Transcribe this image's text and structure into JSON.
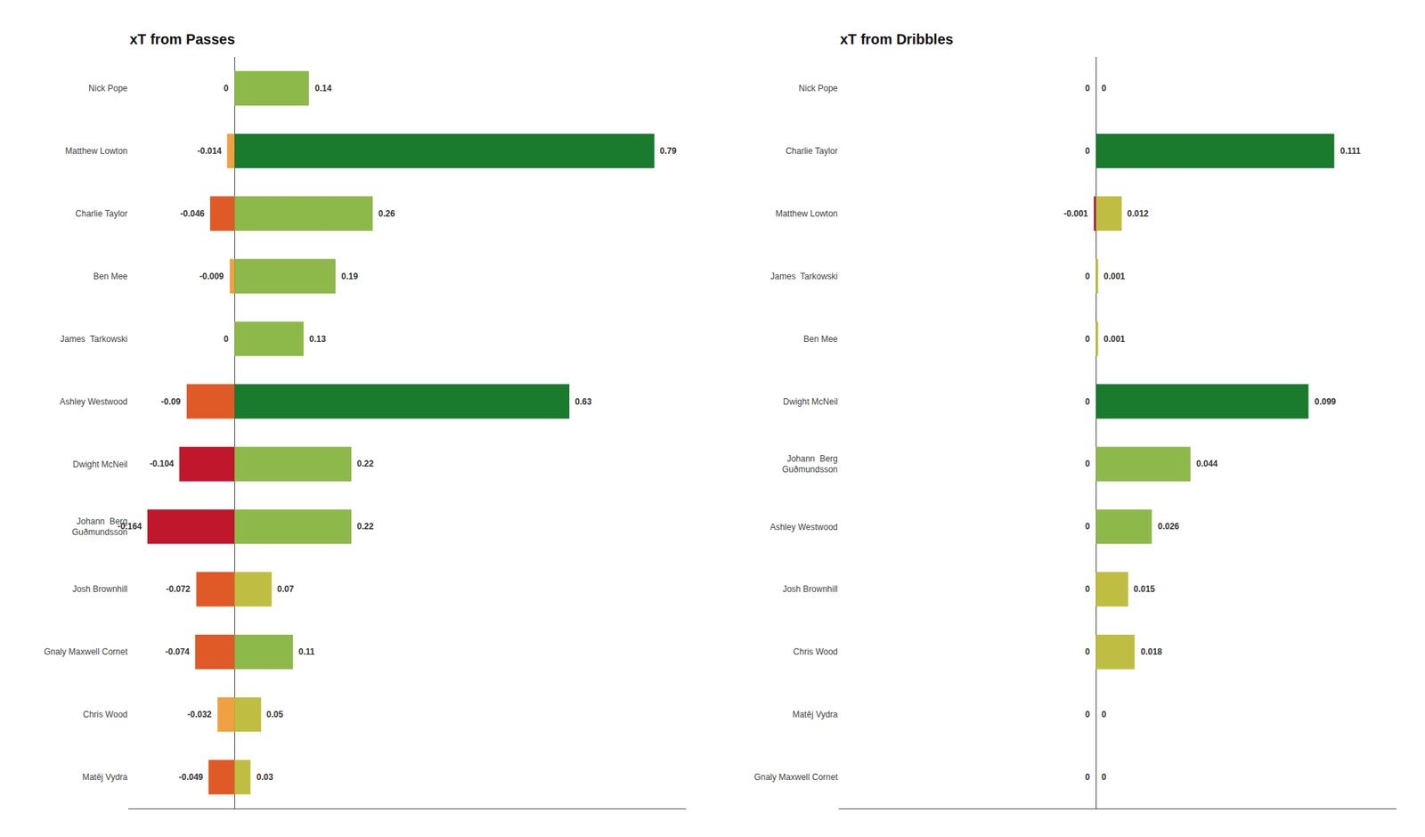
{
  "chart_data": [
    {
      "type": "bar",
      "orientation": "horizontal",
      "title": "xT from Passes",
      "categories": [
        "Nick Pope",
        "Matthew Lowton",
        "Charlie Taylor",
        "Ben Mee",
        "James  Tarkowski",
        "Ashley Westwood",
        "Dwight McNeil",
        "Johann  Berg\nGuðmundsson",
        "Josh Brownhill",
        "Gnaly Maxwell Cornet",
        "Chris Wood",
        "Matěj Vydra"
      ],
      "series": [
        {
          "values": [
            0,
            -0.014,
            -0.046,
            -0.009,
            0,
            -0.09,
            -0.104,
            -0.164,
            -0.072,
            -0.074,
            -0.032,
            -0.049
          ],
          "colors": [
            "#f0a040",
            "#f0a040",
            "#e05a28",
            "#f0a040",
            "#f0a040",
            "#e05a28",
            "#c0172d",
            "#c0172d",
            "#e05a28",
            "#e05a28",
            "#f0a040",
            "#e05a28"
          ]
        },
        {
          "values": [
            0.14,
            0.79,
            0.26,
            0.19,
            0.13,
            0.63,
            0.22,
            0.22,
            0.07,
            0.11,
            0.05,
            0.03
          ],
          "colors": [
            "#8db84a",
            "#1a7a2e",
            "#8db84a",
            "#8db84a",
            "#8db84a",
            "#1a7a2e",
            "#8db84a",
            "#8db84a",
            "#bfbe42",
            "#8db84a",
            "#bfbe42",
            "#bfbe42"
          ]
        }
      ],
      "xlim": [
        -0.2,
        0.85
      ],
      "data_labels": true,
      "tick_labels": "y",
      "grid": false
    },
    {
      "type": "bar",
      "orientation": "horizontal",
      "title": "xT from Dribbles",
      "categories": [
        "Nick Pope",
        "Charlie Taylor",
        "Matthew Lowton",
        "James  Tarkowski",
        "Ben Mee",
        "Dwight McNeil",
        "Johann  Berg\nGuðmundsson",
        "Ashley Westwood",
        "Josh Brownhill",
        "Chris Wood",
        "Matěj Vydra",
        "Gnaly Maxwell Cornet"
      ],
      "series": [
        {
          "values": [
            0,
            0,
            -0.001,
            0,
            0,
            0,
            0,
            0,
            0,
            0,
            0,
            0
          ],
          "colors": [
            "#f0a040",
            "#f0a040",
            "#b8123a",
            "#f0a040",
            "#f0a040",
            "#f0a040",
            "#f0a040",
            "#f0a040",
            "#f0a040",
            "#f0a040",
            "#f0a040",
            "#f0a040"
          ]
        },
        {
          "values": [
            0,
            0.111,
            0.012,
            0.001,
            0.001,
            0.099,
            0.044,
            0.026,
            0.015,
            0.018,
            0,
            0
          ],
          "colors": [
            "#bfbe42",
            "#1a7a2e",
            "#bfbe42",
            "#bfbe42",
            "#bfbe42",
            "#1a7a2e",
            "#8db84a",
            "#8db84a",
            "#bfbe42",
            "#bfbe42",
            "#bfbe42",
            "#bfbe42"
          ]
        }
      ],
      "xlim": [
        -0.12,
        0.14
      ],
      "data_labels": true,
      "tick_labels": "y",
      "grid": false
    }
  ]
}
